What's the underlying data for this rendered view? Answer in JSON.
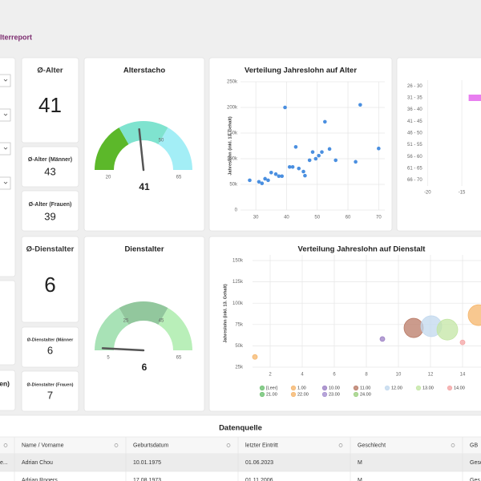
{
  "header": {
    "title": "lterreport"
  },
  "left_fragments": [
    "en)"
  ],
  "kpis": [
    {
      "title": "Ø-Alter",
      "value": 41
    },
    {
      "title": "Ø-Alter (Männer)",
      "value": 43
    },
    {
      "title": "Ø-Alter (Frauen)",
      "value": 39
    },
    {
      "title": "Ø-Dienstalter",
      "value": 6
    },
    {
      "title": "Ø-Dienstalter (Männer",
      "value": 6
    },
    {
      "title": "Ø-Dienstalter (Frauen)",
      "value": 7
    }
  ],
  "gauges": [
    {
      "title": "Alterstacho",
      "min": 20,
      "max": 65,
      "value": 41,
      "ticks": [
        20,
        50,
        65
      ],
      "bands": [
        {
          "from": 20,
          "to": 35,
          "color": "#5cb82a"
        },
        {
          "from": 35,
          "to": 50,
          "color": "#7fe3cf"
        },
        {
          "from": 50,
          "to": 65,
          "color": "#a3eef6"
        }
      ]
    },
    {
      "title": "Dienstalter",
      "min": 5,
      "max": 65,
      "value": 6,
      "ticks": [
        5,
        25,
        45,
        65
      ],
      "bands": [
        {
          "from": 5,
          "to": 25,
          "color": "#a8e2b6"
        },
        {
          "from": 25,
          "to": 45,
          "color": "#92c79d"
        },
        {
          "from": 45,
          "to": 65,
          "color": "#b9efb9"
        }
      ]
    }
  ],
  "charts": [
    {
      "type": "scatter",
      "title": "Verteilung Jahreslohn auf Alter",
      "y_label": "Jahreslohn (inkl. 13. Gehalt)",
      "x": [
        28,
        31,
        32,
        33,
        34,
        35,
        36.5,
        37.5,
        38.5,
        39.5,
        41,
        42,
        43,
        44,
        45.5,
        46,
        47.5,
        48.5,
        49.5,
        50.5,
        51.5,
        52.5,
        54,
        56,
        62.5,
        64,
        70
      ],
      "values": [
        58000,
        55000,
        52000,
        61000,
        58000,
        73000,
        70000,
        66000,
        66000,
        200000,
        84000,
        84000,
        123000,
        81000,
        75000,
        67000,
        97000,
        113000,
        100000,
        106000,
        113000,
        172000,
        119000,
        97000,
        94000,
        205000,
        120000
      ],
      "color": "#4a8fe0",
      "xlim": [
        25,
        72
      ],
      "xticks": [
        30,
        40,
        50,
        60,
        70
      ],
      "ylim": [
        0,
        250000
      ],
      "yticks": [
        0,
        {
          "value": 50000,
          "label": "50k"
        },
        {
          "value": 100000,
          "label": "100k"
        },
        {
          "value": 150000,
          "label": "150k"
        },
        {
          "value": 200000,
          "label": "200k"
        },
        {
          "value": 250000,
          "label": "250k"
        }
      ],
      "grid": true
    },
    {
      "type": "bar",
      "orientation": "horizontal",
      "categories": [
        "26 - 30",
        "31 - 35",
        "36 - 40",
        "41 - 45",
        "46 - 50",
        "51 - 55",
        "56 - 60",
        "61 - 65",
        "66 - 70"
      ],
      "values": [
        null,
        -14,
        null,
        null,
        null,
        null,
        null,
        null,
        null
      ],
      "color": "#e87ef0",
      "xlim": [
        -20.5,
        -12.2
      ],
      "xticks": [
        -20,
        -15
      ],
      "grid": true
    },
    {
      "type": "bubble",
      "title": "Verteilung Jahreslohn auf Dienstalt",
      "y_label": "Jahreslohn (inkl. 13. Gehalt)",
      "series": [
        {
          "name": "[Leer]",
          "color": "#6cc070",
          "x": [],
          "values": [],
          "sizes": []
        },
        {
          "name": "1.00",
          "color": "#f5b56b",
          "x": [
            1.05
          ],
          "values": [
            37000
          ],
          "sizes": [
            1.5
          ]
        },
        {
          "name": "10.00",
          "color": "#9b7fc4",
          "x": [
            9
          ],
          "values": [
            58000
          ],
          "sizes": [
            1.5
          ]
        },
        {
          "name": "11.00",
          "color": "#b97a66",
          "x": [
            10.95
          ],
          "values": [
            71000
          ],
          "sizes": [
            6
          ]
        },
        {
          "name": "12.00",
          "color": "#c2d8ee",
          "x": [
            12.05
          ],
          "values": [
            73000
          ],
          "sizes": [
            6.5
          ]
        },
        {
          "name": "13.00",
          "color": "#c3e6a4",
          "x": [
            13.05
          ],
          "values": [
            69000
          ],
          "sizes": [
            6.5
          ]
        },
        {
          "name": "14.00",
          "color": "#f4a4a4",
          "x": [
            14
          ],
          "values": [
            54000
          ],
          "sizes": [
            1.5
          ]
        },
        {
          "name": "21.00",
          "color": "#6cc070",
          "x": [],
          "values": [],
          "sizes": []
        },
        {
          "name": "22.00",
          "color": "#f5b56b",
          "x": [
            15
          ],
          "values": [
            86000
          ],
          "sizes": [
            6.5
          ]
        },
        {
          "name": "23.00",
          "color": "#a58fd0",
          "x": [],
          "values": [],
          "sizes": []
        },
        {
          "name": "24.00",
          "color": "#9ccf7f",
          "x": [],
          "values": [],
          "sizes": []
        }
      ],
      "xlim": [
        0.9,
        15.15
      ],
      "xticks": [
        2,
        4,
        6,
        8,
        10,
        12,
        14
      ],
      "ylim": [
        25000,
        150000
      ],
      "yticks": [
        {
          "value": 25000,
          "label": "25k"
        },
        {
          "value": 50000,
          "label": "50k"
        },
        {
          "value": 75000,
          "label": "75k"
        },
        {
          "value": 100000,
          "label": "100k"
        },
        {
          "value": 125000,
          "label": "125k"
        },
        {
          "value": 150000,
          "label": "150k"
        }
      ],
      "grid": true
    }
  ],
  "table": {
    "title": "Datenquelle",
    "columns": [
      "Name / Vorname",
      "Geburtsdatum",
      "letzter Eintritt",
      "Geschlecht",
      "GB"
    ],
    "rows": [
      {
        "lead": "e...",
        "cells": [
          "Adrian Chou",
          "10.01.1975",
          "01.06.2023",
          "M",
          "Gesc"
        ]
      },
      {
        "cells": [
          "Adrian Rogers",
          "17.08.1973",
          "01.11.2006",
          "M",
          "Ges"
        ]
      }
    ]
  }
}
